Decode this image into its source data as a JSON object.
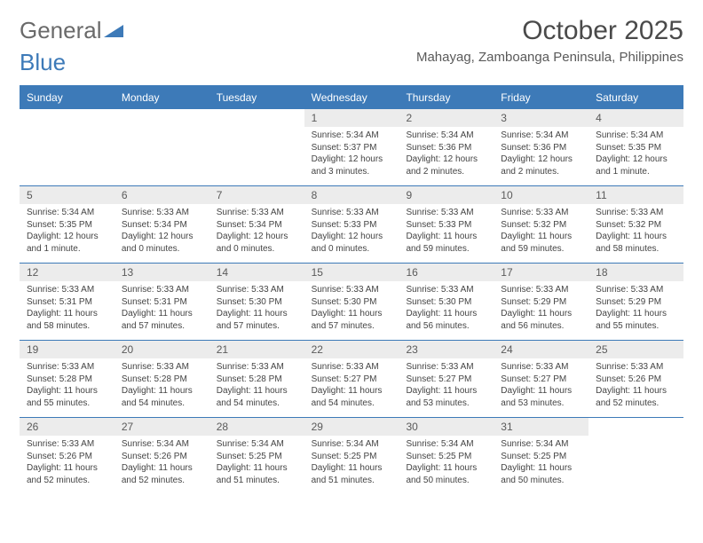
{
  "logo": {
    "part1": "General",
    "part2": "Blue"
  },
  "title": "October 2025",
  "location": "Mahayag, Zamboanga Peninsula, Philippines",
  "colors": {
    "accent": "#3d7ab8",
    "header_text": "#ffffff",
    "daynum_bg": "#ececec",
    "text": "#444444",
    "title_text": "#4a4a4a",
    "page_bg": "#ffffff"
  },
  "layout": {
    "columns": 7,
    "rows": 5,
    "header_fontsize": 12,
    "daynum_fontsize": 12,
    "info_fontsize": 10,
    "title_fontsize": 30,
    "location_fontsize": 15
  },
  "day_headers": [
    "Sunday",
    "Monday",
    "Tuesday",
    "Wednesday",
    "Thursday",
    "Friday",
    "Saturday"
  ],
  "weeks": [
    [
      null,
      null,
      null,
      {
        "n": "1",
        "sr": "5:34 AM",
        "ss": "5:37 PM",
        "dl": "12 hours and 3 minutes."
      },
      {
        "n": "2",
        "sr": "5:34 AM",
        "ss": "5:36 PM",
        "dl": "12 hours and 2 minutes."
      },
      {
        "n": "3",
        "sr": "5:34 AM",
        "ss": "5:36 PM",
        "dl": "12 hours and 2 minutes."
      },
      {
        "n": "4",
        "sr": "5:34 AM",
        "ss": "5:35 PM",
        "dl": "12 hours and 1 minute."
      }
    ],
    [
      {
        "n": "5",
        "sr": "5:34 AM",
        "ss": "5:35 PM",
        "dl": "12 hours and 1 minute."
      },
      {
        "n": "6",
        "sr": "5:33 AM",
        "ss": "5:34 PM",
        "dl": "12 hours and 0 minutes."
      },
      {
        "n": "7",
        "sr": "5:33 AM",
        "ss": "5:34 PM",
        "dl": "12 hours and 0 minutes."
      },
      {
        "n": "8",
        "sr": "5:33 AM",
        "ss": "5:33 PM",
        "dl": "12 hours and 0 minutes."
      },
      {
        "n": "9",
        "sr": "5:33 AM",
        "ss": "5:33 PM",
        "dl": "11 hours and 59 minutes."
      },
      {
        "n": "10",
        "sr": "5:33 AM",
        "ss": "5:32 PM",
        "dl": "11 hours and 59 minutes."
      },
      {
        "n": "11",
        "sr": "5:33 AM",
        "ss": "5:32 PM",
        "dl": "11 hours and 58 minutes."
      }
    ],
    [
      {
        "n": "12",
        "sr": "5:33 AM",
        "ss": "5:31 PM",
        "dl": "11 hours and 58 minutes."
      },
      {
        "n": "13",
        "sr": "5:33 AM",
        "ss": "5:31 PM",
        "dl": "11 hours and 57 minutes."
      },
      {
        "n": "14",
        "sr": "5:33 AM",
        "ss": "5:30 PM",
        "dl": "11 hours and 57 minutes."
      },
      {
        "n": "15",
        "sr": "5:33 AM",
        "ss": "5:30 PM",
        "dl": "11 hours and 57 minutes."
      },
      {
        "n": "16",
        "sr": "5:33 AM",
        "ss": "5:30 PM",
        "dl": "11 hours and 56 minutes."
      },
      {
        "n": "17",
        "sr": "5:33 AM",
        "ss": "5:29 PM",
        "dl": "11 hours and 56 minutes."
      },
      {
        "n": "18",
        "sr": "5:33 AM",
        "ss": "5:29 PM",
        "dl": "11 hours and 55 minutes."
      }
    ],
    [
      {
        "n": "19",
        "sr": "5:33 AM",
        "ss": "5:28 PM",
        "dl": "11 hours and 55 minutes."
      },
      {
        "n": "20",
        "sr": "5:33 AM",
        "ss": "5:28 PM",
        "dl": "11 hours and 54 minutes."
      },
      {
        "n": "21",
        "sr": "5:33 AM",
        "ss": "5:28 PM",
        "dl": "11 hours and 54 minutes."
      },
      {
        "n": "22",
        "sr": "5:33 AM",
        "ss": "5:27 PM",
        "dl": "11 hours and 54 minutes."
      },
      {
        "n": "23",
        "sr": "5:33 AM",
        "ss": "5:27 PM",
        "dl": "11 hours and 53 minutes."
      },
      {
        "n": "24",
        "sr": "5:33 AM",
        "ss": "5:27 PM",
        "dl": "11 hours and 53 minutes."
      },
      {
        "n": "25",
        "sr": "5:33 AM",
        "ss": "5:26 PM",
        "dl": "11 hours and 52 minutes."
      }
    ],
    [
      {
        "n": "26",
        "sr": "5:33 AM",
        "ss": "5:26 PM",
        "dl": "11 hours and 52 minutes."
      },
      {
        "n": "27",
        "sr": "5:34 AM",
        "ss": "5:26 PM",
        "dl": "11 hours and 52 minutes."
      },
      {
        "n": "28",
        "sr": "5:34 AM",
        "ss": "5:25 PM",
        "dl": "11 hours and 51 minutes."
      },
      {
        "n": "29",
        "sr": "5:34 AM",
        "ss": "5:25 PM",
        "dl": "11 hours and 51 minutes."
      },
      {
        "n": "30",
        "sr": "5:34 AM",
        "ss": "5:25 PM",
        "dl": "11 hours and 50 minutes."
      },
      {
        "n": "31",
        "sr": "5:34 AM",
        "ss": "5:25 PM",
        "dl": "11 hours and 50 minutes."
      },
      null
    ]
  ],
  "labels": {
    "sunrise": "Sunrise: ",
    "sunset": "Sunset: ",
    "daylight": "Daylight: "
  }
}
